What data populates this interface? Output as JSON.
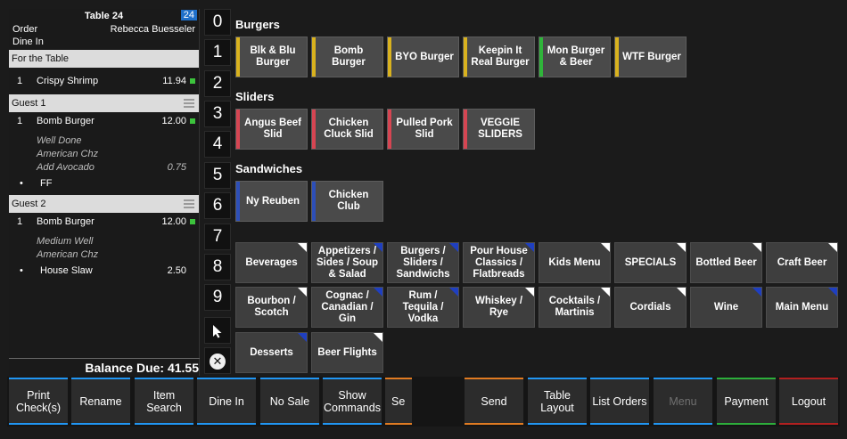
{
  "order": {
    "table_title": "Table 24",
    "table_number": "24",
    "order_label": "Order",
    "server_name": "Rebecca Buesseler",
    "order_type": "Dine In",
    "sections": [
      {
        "title": "For the Table",
        "items": [
          {
            "qty": "1",
            "name": "Crispy Shrimp",
            "price": "11.94"
          }
        ]
      },
      {
        "title": "Guest 1",
        "items": [
          {
            "qty": "1",
            "name": "Bomb Burger",
            "price": "12.00"
          }
        ],
        "modifiers": [
          {
            "text": "Well Done",
            "price": ""
          },
          {
            "text": "American Chz",
            "price": ""
          },
          {
            "text": "Add Avocado",
            "price": "0.75"
          }
        ],
        "side": {
          "text": "FF",
          "price": ""
        }
      },
      {
        "title": "Guest 2",
        "items": [
          {
            "qty": "1",
            "name": "Bomb Burger",
            "price": "12.00"
          }
        ],
        "modifiers": [
          {
            "text": "Medium Well",
            "price": ""
          },
          {
            "text": "American Chz",
            "price": ""
          }
        ],
        "side": {
          "text": "House Slaw",
          "price": "2.50"
        }
      }
    ],
    "balance_due": "Balance Due: 41.55"
  },
  "numpad": [
    "0",
    "1",
    "2",
    "3",
    "4",
    "5",
    "6",
    "7",
    "8",
    "9"
  ],
  "categories": {
    "burgers": "Burgers",
    "sliders": "Sliders",
    "sandwiches": "Sandwiches"
  },
  "items": {
    "burgers": [
      {
        "label": "Blk & Blu Burger",
        "color": "#d9b21e"
      },
      {
        "label": "Bomb Burger",
        "color": "#d9b21e"
      },
      {
        "label": "BYO Burger",
        "color": "#d9b21e"
      },
      {
        "label": "Keepin It Real Burger",
        "color": "#d9b21e"
      },
      {
        "label": "Mon Burger & Beer",
        "color": "#2fb53a"
      },
      {
        "label": "WTF Burger",
        "color": "#d9b21e"
      }
    ],
    "sliders": [
      {
        "label": "Angus Beef Slid",
        "color": "#d64552"
      },
      {
        "label": "Chicken Cluck Slid",
        "color": "#d64552"
      },
      {
        "label": "Pulled Pork Slid",
        "color": "#d64552"
      },
      {
        "label": "VEGGIE SLIDERS",
        "color": "#d64552"
      }
    ],
    "sandwiches": [
      {
        "label": "Ny Reuben",
        "color": "#2d4fb8"
      },
      {
        "label": "Chicken Club",
        "color": "#2d4fb8"
      }
    ]
  },
  "nav_buttons": [
    {
      "label": "Beverages",
      "corner": "#ffffff"
    },
    {
      "label": "Appetizers / Sides / Soup & Salad",
      "corner": "#1f3fc0"
    },
    {
      "label": "Burgers / Sliders / Sandwichs",
      "corner": "#1f3fc0"
    },
    {
      "label": "Pour House Classics / Flatbreads",
      "corner": "#1f3fc0"
    },
    {
      "label": "Kids Menu",
      "corner": "#ffffff"
    },
    {
      "label": "SPECIALS",
      "corner": "#ffffff"
    },
    {
      "label": "Bottled Beer",
      "corner": "#ffffff"
    },
    {
      "label": "Craft Beer",
      "corner": "#ffffff"
    },
    {
      "label": "Bourbon / Scotch",
      "corner": "#ffffff"
    },
    {
      "label": "Cognac / Canadian / Gin",
      "corner": "#1f3fc0"
    },
    {
      "label": "Rum / Tequila / Vodka",
      "corner": "#1f3fc0"
    },
    {
      "label": "Whiskey / Rye",
      "corner": "#ffffff"
    },
    {
      "label": "Cocktails / Martinis",
      "corner": "#ffffff"
    },
    {
      "label": "Cordials",
      "corner": "#ffffff"
    },
    {
      "label": "Wine",
      "corner": "#1f3fc0"
    },
    {
      "label": "Main Menu",
      "corner": "#1f3fc0"
    },
    {
      "label": "Desserts",
      "corner": "#1f3fc0"
    },
    {
      "label": "Beer Flights",
      "corner": "#ffffff"
    }
  ],
  "bottom_bar": [
    {
      "label": "Print Check(s)"
    },
    {
      "label": "Rename"
    },
    {
      "label": "Item Search"
    },
    {
      "label": "Dine In"
    },
    {
      "label": "No Sale"
    },
    {
      "label": "Show Commands"
    },
    {
      "label": "Se"
    },
    {
      "label": "Send"
    },
    {
      "label": "Table Layout"
    },
    {
      "label": "List Orders"
    },
    {
      "label": "Menu"
    },
    {
      "label": "Payment"
    },
    {
      "label": "Logout"
    }
  ]
}
